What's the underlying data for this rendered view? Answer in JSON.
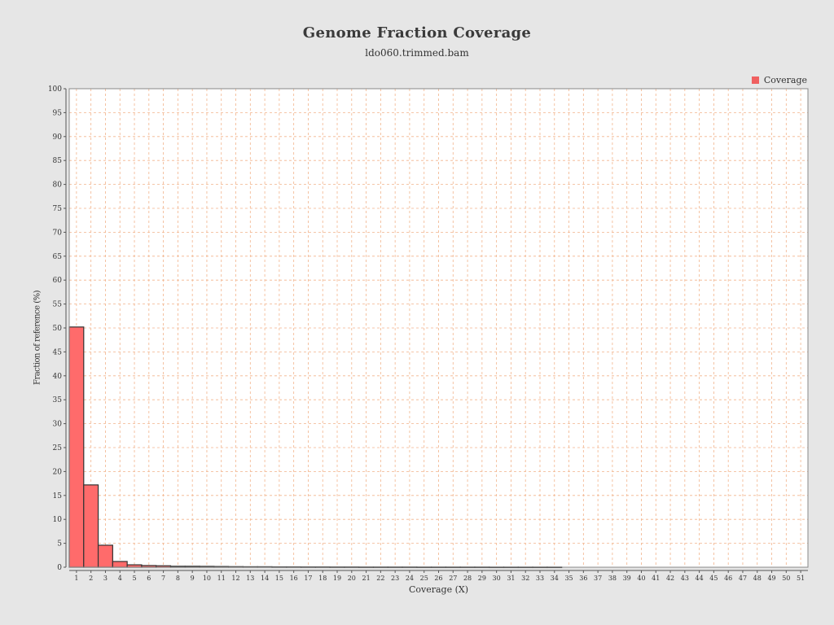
{
  "chart_data": {
    "type": "bar",
    "title": "Genome Fraction Coverage",
    "subtitle": "ldo060.trimmed.bam",
    "xlabel": "Coverage (X)",
    "ylabel": "Fraction of reference (%)",
    "legend": {
      "label": "Coverage",
      "position": "top-right"
    },
    "ylim": [
      0,
      100
    ],
    "ytick_step": 5,
    "grid": true,
    "categories": [
      "1",
      "2",
      "3",
      "4",
      "5",
      "6",
      "7",
      "8",
      "9",
      "10",
      "11",
      "12",
      "13",
      "14",
      "15",
      "16",
      "17",
      "18",
      "19",
      "20",
      "21",
      "22",
      "23",
      "24",
      "25",
      "26",
      "27",
      "28",
      "29",
      "30",
      "31",
      "32",
      "33",
      "34",
      "35",
      "36",
      "37",
      "38",
      "39",
      "40",
      "41",
      "42",
      "43",
      "44",
      "45",
      "46",
      "47",
      "48",
      "49",
      "50",
      "51"
    ],
    "series": [
      {
        "name": "Coverage",
        "values": [
          50.2,
          17.2,
          4.6,
          1.2,
          0.5,
          0.35,
          0.3,
          0.2,
          0.2,
          0.18,
          0.15,
          0.12,
          0.1,
          0.1,
          0.08,
          0.08,
          0.07,
          0.07,
          0.06,
          0.06,
          0.05,
          0.05,
          0.05,
          0.05,
          0.04,
          0.04,
          0.04,
          0.04,
          0.04,
          0.03,
          0.03,
          0.03,
          0.03,
          0.03,
          0,
          0,
          0,
          0,
          0,
          0,
          0,
          0,
          0,
          0,
          0,
          0,
          0,
          0,
          0,
          0,
          0
        ]
      }
    ],
    "colors": {
      "bar_fill": "#ff6b6b",
      "bar_stroke": "#333333",
      "grid": "#f2b48c",
      "plot_background": "#ffffff",
      "page_background": "#e6e6e6",
      "legend_swatch": "#f06060"
    }
  }
}
